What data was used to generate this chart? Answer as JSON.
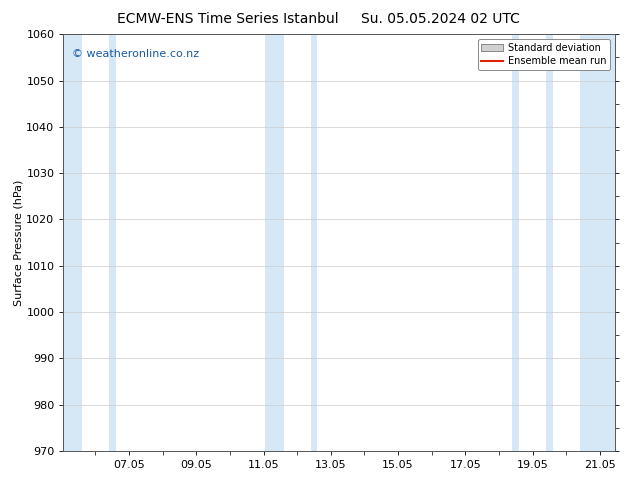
{
  "title_left": "ECMW-ENS Time Series Istanbul",
  "title_right": "Su. 05.05.2024 02 UTC",
  "ylabel": "Surface Pressure (hPa)",
  "ylim": [
    970,
    1060
  ],
  "yticks": [
    970,
    980,
    990,
    1000,
    1010,
    1020,
    1030,
    1040,
    1050,
    1060
  ],
  "xlim_start": 5.05,
  "xlim_end": 21.45,
  "xtick_labels": [
    "07.05",
    "09.05",
    "11.05",
    "13.05",
    "15.05",
    "17.05",
    "19.05",
    "21.05"
  ],
  "xtick_positions": [
    7.0,
    9.0,
    11.0,
    13.0,
    15.0,
    17.0,
    19.0,
    21.0
  ],
  "shaded_bands": [
    {
      "x_start": 5.05,
      "x_end": 5.6
    },
    {
      "x_start": 6.4,
      "x_end": 6.6
    },
    {
      "x_start": 11.05,
      "x_end": 11.6
    },
    {
      "x_start": 12.4,
      "x_end": 12.6
    },
    {
      "x_start": 18.4,
      "x_end": 18.6
    },
    {
      "x_start": 19.4,
      "x_end": 19.6
    },
    {
      "x_start": 20.4,
      "x_end": 21.45
    }
  ],
  "shaded_color": "#d6e8f5",
  "background_color": "#ffffff",
  "grid_color": "#cccccc",
  "watermark_text": "© weatheronline.co.nz",
  "watermark_color": "#1a5aa0",
  "legend_std_label": "Standard deviation",
  "legend_mean_label": "Ensemble mean run",
  "legend_std_facecolor": "#d0d0d0",
  "legend_std_edgecolor": "#888888",
  "legend_mean_color": "#dd2200",
  "title_fontsize": 10,
  "ylabel_fontsize": 8,
  "tick_fontsize": 8,
  "watermark_fontsize": 8
}
